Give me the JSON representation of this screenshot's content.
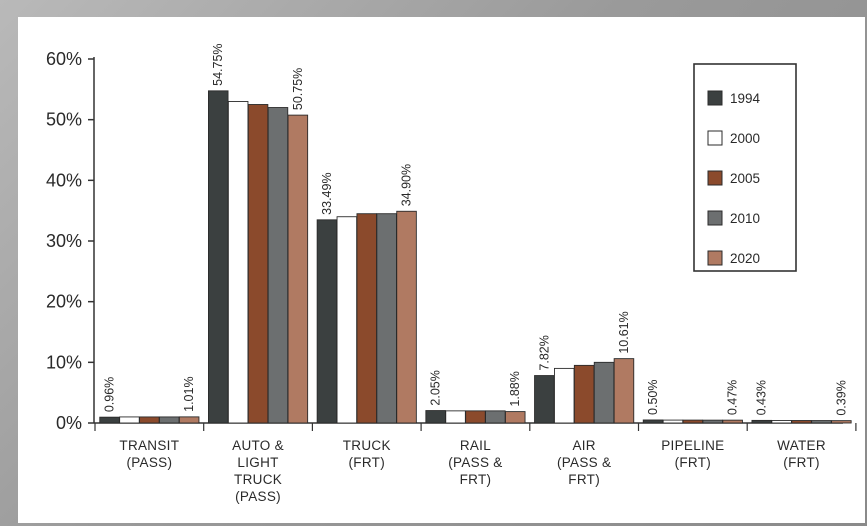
{
  "chart_data": {
    "type": "bar",
    "title": "",
    "xlabel": "",
    "ylabel": "",
    "ylim": [
      0,
      60
    ],
    "yticks": [
      "0%",
      "10%",
      "20%",
      "30%",
      "40%",
      "50%",
      "60%"
    ],
    "grid": false,
    "legend_position": "right",
    "categories": [
      [
        "TRANSIT",
        "(PASS)"
      ],
      [
        "AUTO &",
        "LIGHT",
        "TRUCK",
        "(PASS)"
      ],
      [
        "TRUCK",
        "(FRT)"
      ],
      [
        "RAIL",
        "(PASS &",
        "FRT)"
      ],
      [
        "AIR",
        "(PASS &",
        "FRT)"
      ],
      [
        "PIPELINE",
        "(FRT)"
      ],
      [
        "WATER",
        "(FRT)"
      ]
    ],
    "series": [
      {
        "name": "1994",
        "color": "#3b4040",
        "values": [
          0.96,
          54.75,
          33.49,
          2.05,
          7.82,
          0.5,
          0.43
        ]
      },
      {
        "name": "2000",
        "color": "#ffffff",
        "values": [
          1.0,
          53.0,
          34.0,
          2.0,
          9.0,
          0.48,
          0.41
        ]
      },
      {
        "name": "2005",
        "color": "#8b4a2c",
        "values": [
          1.0,
          52.5,
          34.5,
          2.0,
          9.5,
          0.48,
          0.41
        ]
      },
      {
        "name": "2010",
        "color": "#6c6f70",
        "values": [
          1.0,
          52.0,
          34.5,
          2.0,
          10.0,
          0.47,
          0.4
        ]
      },
      {
        "name": "2020",
        "color": "#b07a62",
        "values": [
          1.01,
          50.75,
          34.9,
          1.88,
          10.61,
          0.47,
          0.39
        ]
      }
    ],
    "data_labels": [
      {
        "category": 0,
        "series": 0,
        "text": "0.96%"
      },
      {
        "category": 0,
        "series": 4,
        "text": "1.01%"
      },
      {
        "category": 1,
        "series": 0,
        "text": "54.75%"
      },
      {
        "category": 1,
        "series": 4,
        "text": "50.75%"
      },
      {
        "category": 2,
        "series": 0,
        "text": "33.49%"
      },
      {
        "category": 2,
        "series": 4,
        "text": "34.90%"
      },
      {
        "category": 3,
        "series": 0,
        "text": "2.05%"
      },
      {
        "category": 3,
        "series": 4,
        "text": "1.88%"
      },
      {
        "category": 4,
        "series": 0,
        "text": "7.82%"
      },
      {
        "category": 4,
        "series": 4,
        "text": "10.61%"
      },
      {
        "category": 5,
        "series": 0,
        "text": "0.50%"
      },
      {
        "category": 5,
        "series": 4,
        "text": "0.47%"
      },
      {
        "category": 6,
        "series": 0,
        "text": "0.43%"
      },
      {
        "category": 6,
        "series": 4,
        "text": "0.39%"
      }
    ]
  }
}
